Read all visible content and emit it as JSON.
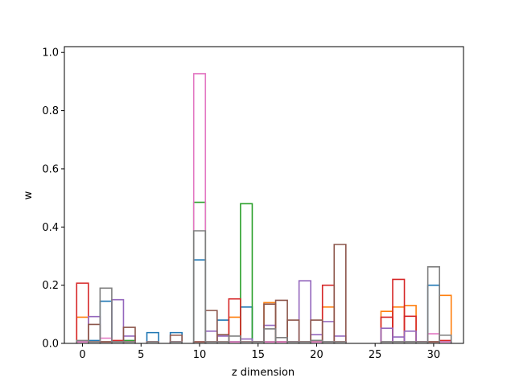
{
  "chart_data": {
    "type": "step-histogram",
    "title": "",
    "xlabel": "z dimension",
    "ylabel": "w",
    "xlim": [
      -1.55,
      32.55
    ],
    "ylim": [
      0,
      1.02
    ],
    "x_ticks": [
      0,
      5,
      10,
      15,
      20,
      25,
      30
    ],
    "y_ticks": [
      0.0,
      0.2,
      0.4,
      0.6,
      0.8,
      1.0
    ],
    "y_tick_labels": [
      "0.0",
      "0.2",
      "0.4",
      "0.6",
      "0.8",
      "1.0"
    ],
    "grid": false,
    "legend": "none",
    "x": [
      0,
      1,
      2,
      3,
      4,
      5,
      6,
      7,
      8,
      9,
      10,
      11,
      12,
      13,
      14,
      15,
      16,
      17,
      18,
      19,
      20,
      21,
      22,
      23,
      24,
      25,
      26,
      27,
      28,
      29,
      30,
      31
    ],
    "series": [
      {
        "color": "#1f77b4",
        "values": [
          0.005,
          0.01,
          0.145,
          0.005,
          0.005,
          0,
          0.037,
          0,
          0.037,
          0,
          0.287,
          0.005,
          0.08,
          0.005,
          0.125,
          0.005,
          0.005,
          0.005,
          0.005,
          0.005,
          0.005,
          0.005,
          0.005,
          0,
          0,
          0,
          0.005,
          0.005,
          0.005,
          0.005,
          0.2,
          0.005
        ]
      },
      {
        "color": "#ff7f0e",
        "values": [
          0.09,
          0.005,
          0.005,
          0.005,
          0.005,
          0,
          0.005,
          0,
          0.005,
          0,
          0.005,
          0.005,
          0.005,
          0.09,
          0.005,
          0.005,
          0.14,
          0.005,
          0.005,
          0.005,
          0.005,
          0.125,
          0.005,
          0,
          0,
          0,
          0.11,
          0.125,
          0.13,
          0.005,
          0.005,
          0.165
        ]
      },
      {
        "color": "#2ca02c",
        "values": [
          0.005,
          0.005,
          0.005,
          0.005,
          0.01,
          0,
          0.005,
          0,
          0.005,
          0,
          0.485,
          0.005,
          0.005,
          0.005,
          0.48,
          0.005,
          0.005,
          0.005,
          0.005,
          0.005,
          0.01,
          0.005,
          0.005,
          0,
          0,
          0,
          0.005,
          0.005,
          0.005,
          0.005,
          0.005,
          0.005
        ]
      },
      {
        "color": "#d62728",
        "values": [
          0.207,
          0.005,
          0.005,
          0.01,
          0.005,
          0,
          0.005,
          0,
          0.005,
          0,
          0.005,
          0.005,
          0.005,
          0.153,
          0.005,
          0.005,
          0.005,
          0.005,
          0.005,
          0.005,
          0.005,
          0.2,
          0.005,
          0,
          0,
          0,
          0.09,
          0.22,
          0.093,
          0.005,
          0.005,
          0.01
        ]
      },
      {
        "color": "#9467bd",
        "values": [
          0.005,
          0.092,
          0.005,
          0.15,
          0.025,
          0,
          0.005,
          0,
          0.005,
          0,
          0.005,
          0.042,
          0.025,
          0.005,
          0.015,
          0.005,
          0.062,
          0.005,
          0.005,
          0.215,
          0.03,
          0.075,
          0.025,
          0,
          0,
          0,
          0.052,
          0.022,
          0.042,
          0.005,
          0.005,
          0.005
        ]
      },
      {
        "color": "#8c564b",
        "values": [
          0.005,
          0.065,
          0.005,
          0.005,
          0.055,
          0,
          0.005,
          0,
          0.028,
          0,
          0.005,
          0.113,
          0.03,
          0.005,
          0.005,
          0.005,
          0.135,
          0.148,
          0.08,
          0.005,
          0.08,
          0.005,
          0.34,
          0,
          0,
          0,
          0.005,
          0.005,
          0.005,
          0.005,
          0.005,
          0.005
        ]
      },
      {
        "color": "#e377c2",
        "values": [
          0.005,
          0.005,
          0.018,
          0.005,
          0.005,
          0,
          0.005,
          0,
          0.005,
          0,
          0.927,
          0.005,
          0.005,
          0.005,
          0.005,
          0.005,
          0.005,
          0.005,
          0.005,
          0.005,
          0.005,
          0.005,
          0.005,
          0,
          0,
          0,
          0.005,
          0.005,
          0.005,
          0.005,
          0.033,
          0.005
        ]
      },
      {
        "color": "#7f7f7f",
        "values": [
          0.01,
          0.005,
          0.19,
          0.005,
          0.005,
          0,
          0.005,
          0,
          0.005,
          0,
          0.387,
          0.005,
          0.005,
          0.025,
          0.005,
          0.005,
          0.05,
          0.02,
          0.005,
          0.005,
          0.01,
          0.005,
          0.005,
          0,
          0,
          0,
          0.005,
          0.005,
          0.005,
          0.005,
          0.263,
          0.028
        ]
      }
    ]
  }
}
